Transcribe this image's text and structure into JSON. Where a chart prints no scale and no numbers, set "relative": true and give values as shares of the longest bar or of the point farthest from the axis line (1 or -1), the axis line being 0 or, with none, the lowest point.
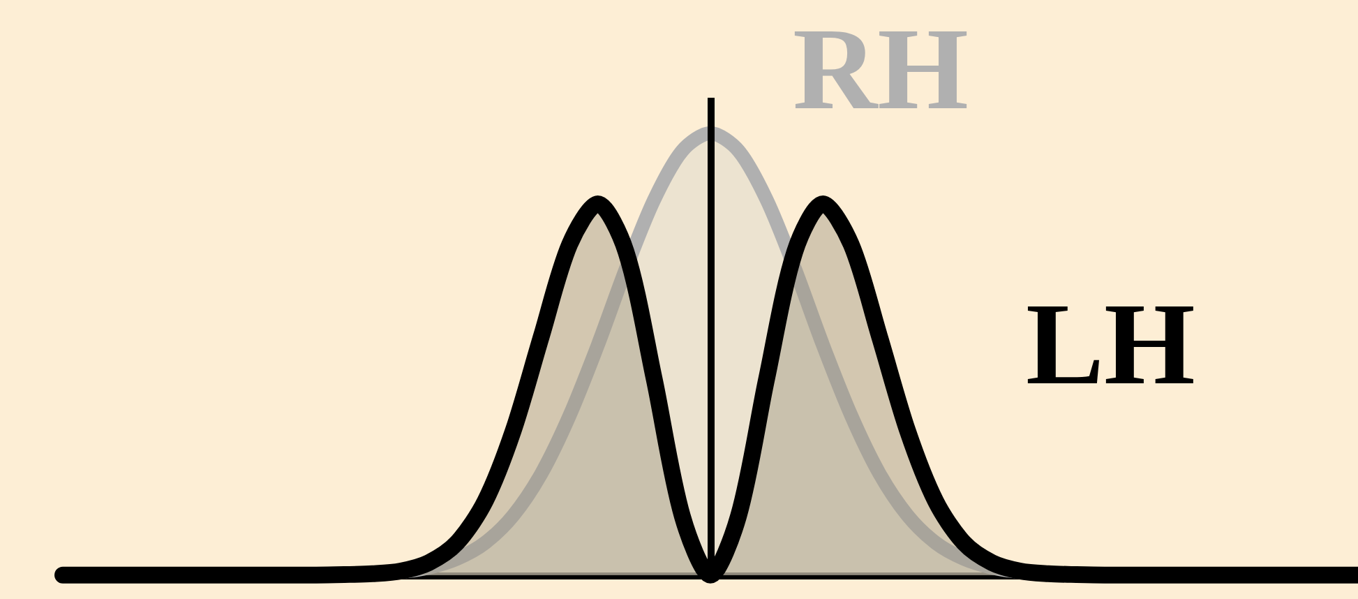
{
  "chart_data": {
    "type": "area",
    "relative": true,
    "categories": [
      null,
      null,
      null,
      null,
      null,
      null,
      null,
      null,
      null,
      null,
      null,
      null,
      null,
      null,
      null,
      null,
      null,
      null,
      null,
      null,
      null,
      null,
      null,
      null,
      null,
      null,
      null,
      null,
      null,
      null,
      null,
      null,
      null,
      null,
      null,
      null,
      null,
      null,
      null,
      null,
      null,
      null,
      null,
      null,
      null,
      null,
      null
    ],
    "series": [
      {
        "name": "RH",
        "color": "#b0b0b0",
        "values": [
          0,
          0,
          0,
          0,
          0,
          0,
          0,
          0,
          0,
          0,
          0.001,
          0.003,
          0.007,
          0.017,
          0.037,
          0.073,
          0.135,
          0.23,
          0.361,
          0.52,
          0.693,
          0.849,
          0.96,
          1,
          0.96,
          0.849,
          0.693,
          0.52,
          0.361,
          0.23,
          0.135,
          0.073,
          0.037,
          0.017,
          0.007,
          0.003,
          0.001,
          0,
          0,
          0,
          0,
          0,
          0,
          0,
          0,
          0,
          0
        ]
      },
      {
        "name": "LH",
        "color": "#000000",
        "values": [
          0,
          0,
          0,
          0,
          0,
          0,
          0,
          0,
          0,
          0,
          0.001,
          0.003,
          0.009,
          0.028,
          0.073,
          0.167,
          0.327,
          0.541,
          0.748,
          0.84,
          0.732,
          0.445,
          0.134,
          0,
          0.134,
          0.445,
          0.732,
          0.84,
          0.748,
          0.541,
          0.327,
          0.167,
          0.073,
          0.028,
          0.009,
          0.003,
          0.001,
          0,
          0,
          0,
          0,
          0,
          0,
          0,
          0,
          0,
          0
        ]
      }
    ]
  }
}
